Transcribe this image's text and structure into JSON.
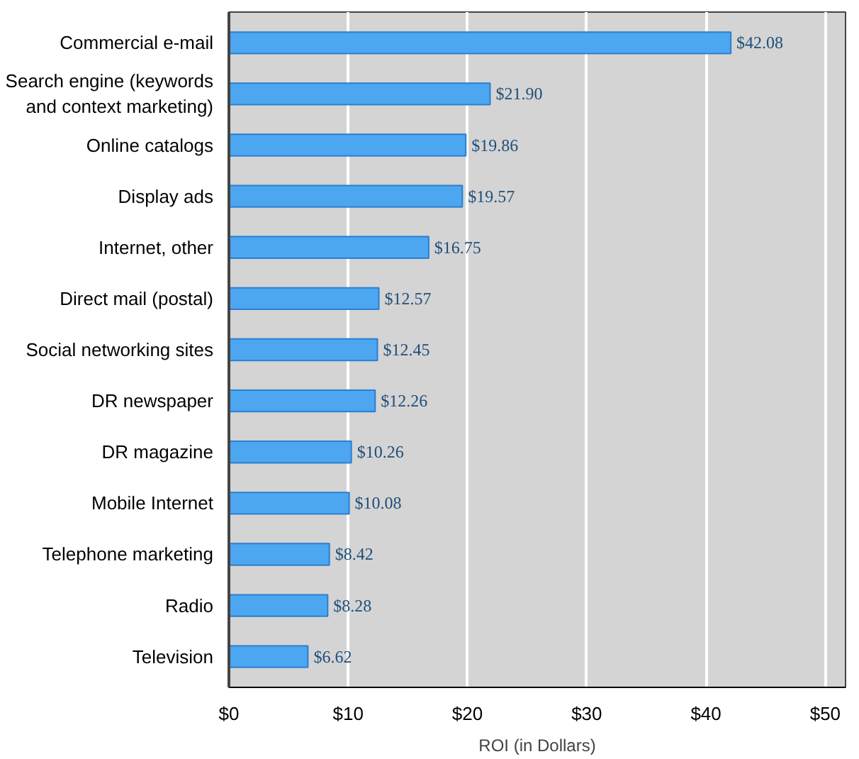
{
  "chart_data": {
    "type": "bar",
    "orientation": "horizontal",
    "xlabel": "ROI (in Dollars)",
    "categories": [
      "Commercial e-mail",
      "Search engine (keywords\nand context marketing)",
      "Online catalogs",
      "Display ads",
      "Internet, other",
      "Direct mail (postal)",
      "Social networking sites",
      "DR newspaper",
      "DR magazine",
      "Mobile Internet",
      "Telephone marketing",
      "Radio",
      "Television"
    ],
    "values": [
      42.08,
      21.9,
      19.86,
      19.57,
      16.75,
      12.57,
      12.45,
      12.26,
      10.26,
      10.08,
      8.42,
      8.28,
      6.62
    ],
    "value_labels": [
      "$42.08",
      "$21.90",
      "$19.86",
      "$19.57",
      "$16.75",
      "$12.57",
      "$12.45",
      "$12.26",
      "$10.26",
      "$10.08",
      "$8.42",
      "$8.28",
      "$6.62"
    ],
    "color": "#4da6f0",
    "xlim": [
      0,
      51.7
    ],
    "xticks": [
      {
        "value": 0,
        "label": "$0"
      },
      {
        "value": 10,
        "label": "$10"
      },
      {
        "value": 20,
        "label": "$20"
      },
      {
        "value": 30,
        "label": "$30"
      },
      {
        "value": 40,
        "label": "$40"
      },
      {
        "value": 50,
        "label": "$50"
      }
    ],
    "grid": "x"
  }
}
